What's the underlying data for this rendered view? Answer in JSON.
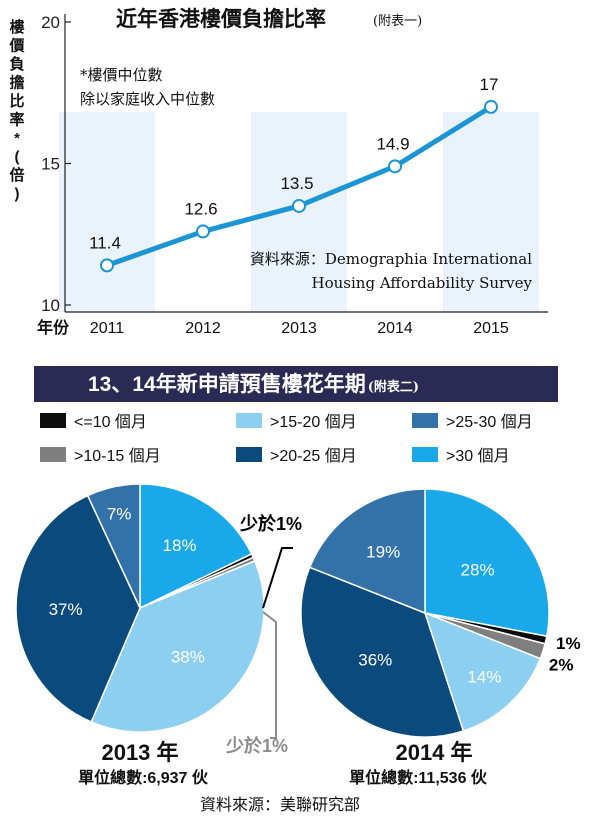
{
  "chart_data": [
    {
      "type": "line",
      "title": "近年香港樓價負擔比率",
      "title_note": "(附表一)",
      "ylabel": "樓價負擔比率*(倍)",
      "xlabel": "年份",
      "ylim": [
        10,
        20
      ],
      "yticks": [
        "20",
        "15",
        "10"
      ],
      "x": [
        "2011",
        "2012",
        "2013",
        "2014",
        "2015"
      ],
      "values": [
        11.4,
        12.6,
        13.5,
        14.9,
        17
      ],
      "value_labels": [
        "11.4",
        "12.6",
        "13.5",
        "14.9",
        "17"
      ],
      "note_line1": "*樓價中位數",
      "note_line2": "除以家庭收入中位數",
      "source_prefix": "資料來源：",
      "source_line1": "Demographia International",
      "source_line2": "Housing Affordability Survey",
      "grid": false,
      "band_color": "#eaf2fb",
      "line_color": "#1b95d3"
    },
    {
      "type": "pie",
      "section_title": "13、14年新申請預售樓花年期",
      "section_note": "(附表二)",
      "legend": [
        {
          "label": "<=10 個月",
          "color": "#0d0d0d"
        },
        {
          "label": ">10-15 個月",
          "color": "#7f7f7f"
        },
        {
          "label": ">15-20 個月",
          "color": "#8ccff1"
        },
        {
          "label": ">20-25 個月",
          "color": "#0b4a7c"
        },
        {
          "label": ">25-30 個月",
          "color": "#3272a8"
        },
        {
          "label": ">30 個月",
          "color": "#19a9ea"
        }
      ],
      "title": "2013 年",
      "total": "單位總數:6,937 伙",
      "slices": [
        {
          "category": ">30 個月",
          "value": 18,
          "label": "18%"
        },
        {
          "category": "<=10 個月",
          "value": 0.5,
          "label": "少於1%"
        },
        {
          "category": ">10-15 個月",
          "value": 0.5,
          "label": "少於1%"
        },
        {
          "category": ">15-20 個月",
          "value": 38,
          "label": "38%"
        },
        {
          "category": ">20-25 個月",
          "value": 37,
          "label": "37%"
        },
        {
          "category": ">25-30 個月",
          "value": 7,
          "label": "7%"
        }
      ]
    },
    {
      "type": "pie",
      "title": "2014 年",
      "total": "單位總數:11,536 伙",
      "slices": [
        {
          "category": ">30 個月",
          "value": 28,
          "label": "28%"
        },
        {
          "category": "<=10 個月",
          "value": 1,
          "label": "1%"
        },
        {
          "category": ">10-15 個月",
          "value": 2,
          "label": "2%"
        },
        {
          "category": ">15-20 個月",
          "value": 14,
          "label": "14%"
        },
        {
          "category": ">20-25 個月",
          "value": 36,
          "label": "36%"
        },
        {
          "category": ">25-30 個月",
          "value": 19,
          "label": "19%"
        }
      ]
    }
  ],
  "footer_source": "資料來源：美聯研究部",
  "section_band_color": "#2a2a55"
}
